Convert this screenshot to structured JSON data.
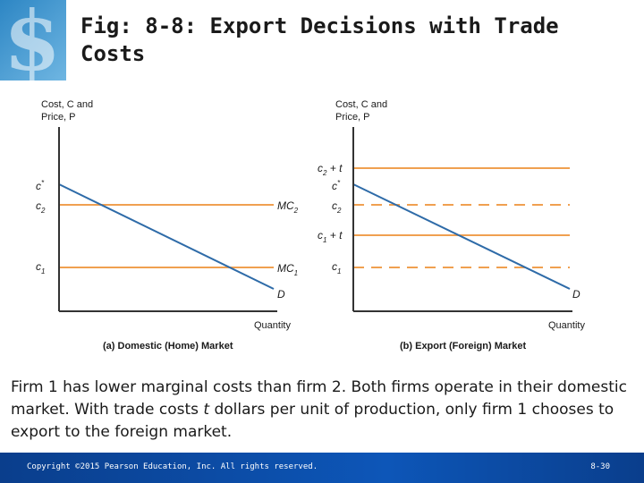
{
  "title": "Fig: 8-8: Export Decisions with Trade Costs",
  "colors": {
    "orange_line": "#f0a050",
    "demand_line": "#2e6ba8",
    "axis": "#333333",
    "footer": "#0d4aa0"
  },
  "panel_a": {
    "axis_y_line1": "Cost, C and",
    "axis_y_line2": "Price, P",
    "axis_x": "Quantity",
    "caption": "(a) Domestic (Home) Market",
    "ticks": {
      "c_star_base": "c",
      "c_star_sup": "*",
      "c2_base": "c",
      "c2_sub": "2",
      "c1_base": "c",
      "c1_sub": "1"
    },
    "labels": {
      "mc2_base": "MC",
      "mc2_sub": "2",
      "mc1_base": "MC",
      "mc1_sub": "1",
      "demand": "D"
    }
  },
  "panel_b": {
    "axis_y_line1": "Cost, C and",
    "axis_y_line2": "Price, P",
    "axis_x": "Quantity",
    "caption": "(b) Export (Foreign) Market",
    "ticks": {
      "c2t_base": "c",
      "c2t_sub": "2",
      "c2t_rest": " + t",
      "c_star_base": "c",
      "c_star_sup": "*",
      "c2_base": "c",
      "c2_sub": "2",
      "c1t_base": "c",
      "c1t_sub": "1",
      "c1t_rest": " + t",
      "c1_base": "c",
      "c1_sub": "1"
    },
    "labels": {
      "demand": "D"
    }
  },
  "caption": {
    "part1": "Firm 1 has lower marginal costs than firm 2. Both firms operate in their domestic market. With trade costs ",
    "t": "t",
    "part2": " dollars per unit of production, only firm 1 chooses to export to the foreign market."
  },
  "footer": {
    "copyright": "Copyright ©2015 Pearson Education, Inc. All rights reserved.",
    "page": "8-30"
  }
}
